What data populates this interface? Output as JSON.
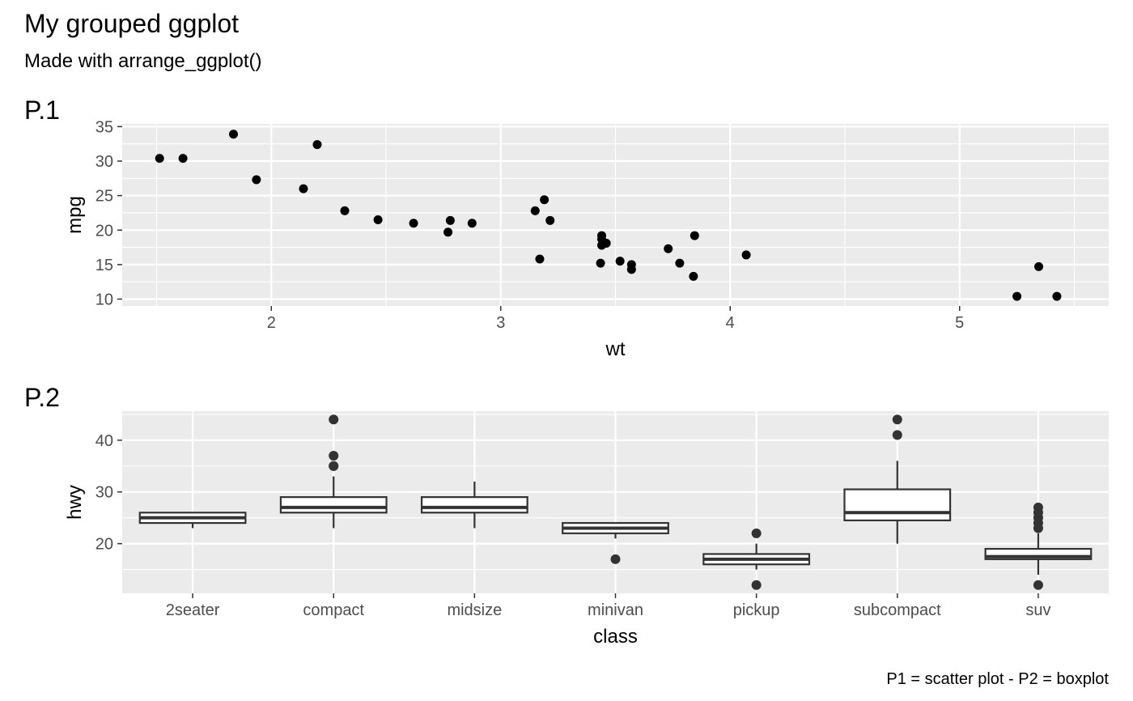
{
  "figure": {
    "title": "My grouped ggplot",
    "subtitle": "Made with arrange_ggplot()",
    "caption": "P1 = scatter plot - P2 = boxplot"
  },
  "colors": {
    "panel_background": "#ebebeb",
    "grid_line": "#ffffff",
    "point": "#000000",
    "box_line": "#333333",
    "box_fill": "#ffffff",
    "tick_text": "#4d4d4d"
  },
  "chart_data": [
    {
      "tag": "P.1",
      "type": "scatter",
      "title": "",
      "xlabel": "wt",
      "ylabel": "mpg",
      "xlim": [
        1.35,
        5.65
      ],
      "ylim": [
        9.0,
        35.4
      ],
      "xticks": [
        2,
        3,
        4,
        5
      ],
      "yticks": [
        10,
        15,
        20,
        25,
        30,
        35
      ],
      "grid": true,
      "points": [
        [
          1.513,
          30.4
        ],
        [
          1.615,
          30.4
        ],
        [
          1.835,
          33.9
        ],
        [
          1.935,
          27.3
        ],
        [
          2.14,
          26.0
        ],
        [
          2.2,
          32.4
        ],
        [
          2.32,
          22.8
        ],
        [
          2.465,
          21.5
        ],
        [
          2.62,
          21.0
        ],
        [
          2.77,
          19.7
        ],
        [
          2.78,
          21.4
        ],
        [
          2.875,
          21.0
        ],
        [
          3.15,
          22.8
        ],
        [
          3.17,
          15.8
        ],
        [
          3.19,
          24.4
        ],
        [
          3.215,
          21.4
        ],
        [
          3.435,
          15.2
        ],
        [
          3.44,
          18.7
        ],
        [
          3.44,
          17.8
        ],
        [
          3.44,
          19.2
        ],
        [
          3.46,
          18.1
        ],
        [
          3.52,
          15.5
        ],
        [
          3.57,
          15.0
        ],
        [
          3.57,
          14.3
        ],
        [
          3.73,
          17.3
        ],
        [
          3.78,
          15.2
        ],
        [
          3.84,
          13.3
        ],
        [
          3.845,
          19.2
        ],
        [
          4.07,
          16.4
        ],
        [
          5.25,
          10.4
        ],
        [
          5.345,
          14.7
        ],
        [
          5.424,
          10.4
        ]
      ]
    },
    {
      "tag": "P.2",
      "type": "box",
      "title": "",
      "xlabel": "class",
      "ylabel": "hwy",
      "ylim": [
        10.4,
        45.6
      ],
      "yticks": [
        20,
        30,
        40
      ],
      "grid": true,
      "categories": [
        "2seater",
        "compact",
        "midsize",
        "minivan",
        "pickup",
        "subcompact",
        "suv"
      ],
      "boxes": [
        {
          "lower": 23,
          "q1": 24,
          "median": 25,
          "q3": 26,
          "upper": 26,
          "outliers": []
        },
        {
          "lower": 23,
          "q1": 26,
          "median": 27,
          "q3": 29,
          "upper": 33,
          "outliers": [
            35,
            37,
            35,
            44
          ]
        },
        {
          "lower": 23,
          "q1": 26,
          "median": 27,
          "q3": 29,
          "upper": 32,
          "outliers": []
        },
        {
          "lower": 21,
          "q1": 22,
          "median": 23,
          "q3": 24,
          "upper": 24,
          "outliers": [
            17
          ]
        },
        {
          "lower": 15,
          "q1": 16,
          "median": 17,
          "q3": 18,
          "upper": 20,
          "outliers": [
            12,
            22
          ]
        },
        {
          "lower": 20,
          "q1": 24.5,
          "median": 26,
          "q3": 30.5,
          "upper": 36,
          "outliers": [
            41,
            44
          ]
        },
        {
          "lower": 14,
          "q1": 17,
          "median": 17.5,
          "q3": 19,
          "upper": 22,
          "outliers": [
            12,
            23,
            24,
            25,
            26,
            27
          ]
        }
      ]
    }
  ]
}
